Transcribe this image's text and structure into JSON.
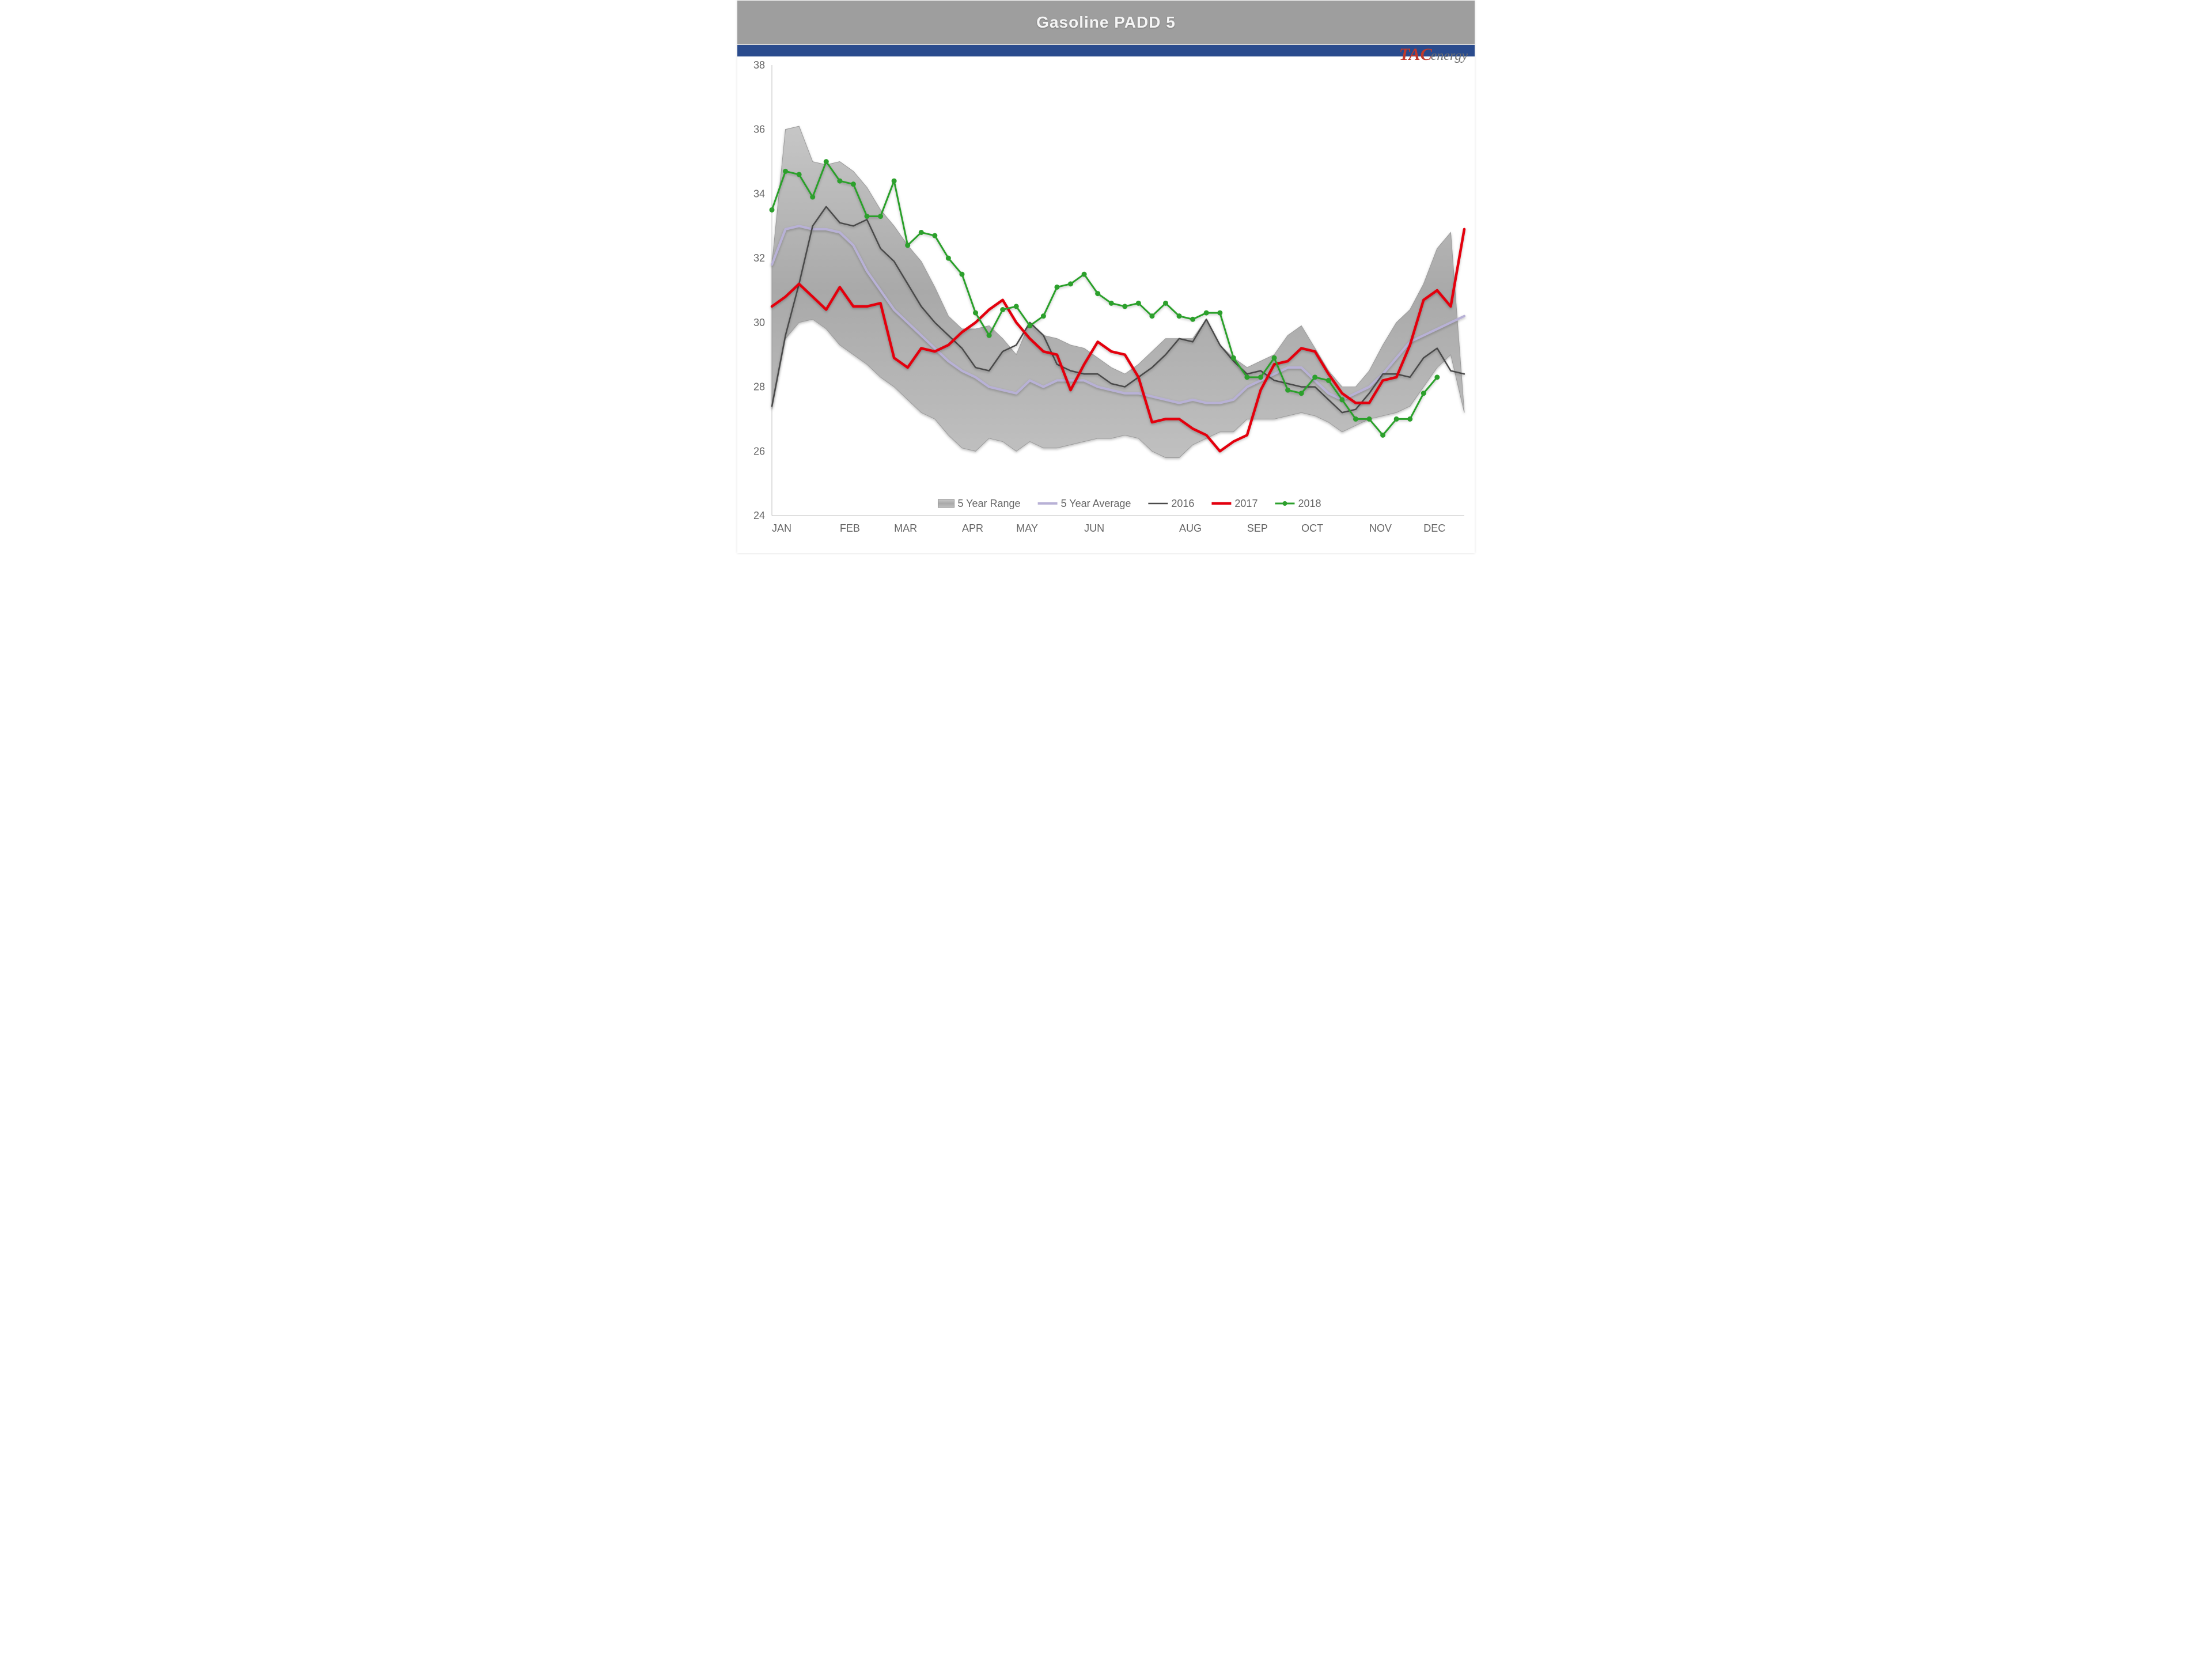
{
  "title": "Gasoline PADD 5",
  "logo": {
    "left": "TAC",
    "right": "energy"
  },
  "chart": {
    "type": "line-with-band",
    "background_color": "#ffffff",
    "plot_border_color": "#bfbfbf",
    "title_bar_color": "#9e9e9e",
    "title_text_color": "#f5f5f5",
    "blue_strip_color": "#2a4b8d",
    "axis_font_size": 18,
    "axis_font_color": "#666666",
    "y": {
      "min": 24,
      "max": 38,
      "tick_step": 2,
      "ticks": [
        24,
        26,
        28,
        30,
        32,
        34,
        36,
        38
      ]
    },
    "x": {
      "labels": [
        "JAN",
        "FEB",
        "MAR",
        "APR",
        "MAY",
        "JUN",
        "AUG",
        "SEP",
        "OCT",
        "NOV",
        "DEC"
      ],
      "label_positions_weeks": [
        0,
        5,
        9,
        14,
        18,
        23,
        30,
        35,
        39,
        44,
        48
      ],
      "weeks": 52
    },
    "range_band": {
      "label": "5 Year Range",
      "fill": "#b9b9b9",
      "stroke": "#8f8f8f",
      "upper": [
        31.8,
        36.0,
        36.1,
        35.0,
        34.9,
        35.0,
        34.7,
        34.2,
        33.5,
        33.0,
        32.4,
        31.9,
        31.1,
        30.2,
        29.8,
        29.8,
        29.9,
        29.5,
        29.0,
        30.0,
        29.6,
        29.5,
        29.3,
        29.2,
        28.9,
        28.6,
        28.4,
        28.7,
        29.1,
        29.5,
        29.5,
        29.5,
        30.1,
        29.3,
        28.9,
        28.6,
        28.8,
        29.0,
        29.6,
        29.9,
        29.2,
        28.5,
        28.0,
        28.0,
        28.5,
        29.3,
        30.0,
        30.4,
        31.2,
        32.3,
        32.8,
        27.2
      ],
      "lower": [
        27.3,
        29.5,
        30.0,
        30.1,
        29.8,
        29.3,
        29.0,
        28.7,
        28.3,
        28.0,
        27.6,
        27.2,
        27.0,
        26.5,
        26.1,
        26.0,
        26.4,
        26.3,
        26.0,
        26.3,
        26.1,
        26.1,
        26.2,
        26.3,
        26.4,
        26.4,
        26.5,
        26.4,
        26.0,
        25.8,
        25.8,
        26.2,
        26.4,
        26.6,
        26.6,
        27.0,
        27.0,
        27.0,
        27.1,
        27.2,
        27.1,
        26.9,
        26.6,
        26.8,
        27.0,
        27.1,
        27.2,
        27.4,
        28.0,
        28.6,
        29.0,
        27.2
      ]
    },
    "series": [
      {
        "name": "5 Year Average",
        "color": "#b8b1d6",
        "width": 4,
        "marker": false,
        "values": [
          31.8,
          32.9,
          33.0,
          32.9,
          32.9,
          32.8,
          32.4,
          31.6,
          31.0,
          30.4,
          30.0,
          29.6,
          29.2,
          28.8,
          28.5,
          28.3,
          28.0,
          27.9,
          27.8,
          28.2,
          28.0,
          28.2,
          28.2,
          28.2,
          28.0,
          27.9,
          27.8,
          27.8,
          27.7,
          27.6,
          27.5,
          27.6,
          27.5,
          27.5,
          27.6,
          28.0,
          28.2,
          28.4,
          28.6,
          28.6,
          28.2,
          27.8,
          27.6,
          27.8,
          28.0,
          28.4,
          28.9,
          29.4,
          29.6,
          29.8,
          30.0,
          30.2
        ]
      },
      {
        "name": "2016",
        "color": "#4a4a4a",
        "width": 2.5,
        "marker": false,
        "values": [
          27.4,
          29.6,
          31.2,
          33.0,
          33.6,
          33.1,
          33.0,
          33.2,
          32.3,
          31.9,
          31.2,
          30.5,
          30.0,
          29.6,
          29.2,
          28.6,
          28.5,
          29.1,
          29.3,
          30.0,
          29.6,
          28.7,
          28.5,
          28.4,
          28.4,
          28.1,
          28.0,
          28.3,
          28.6,
          29.0,
          29.5,
          29.4,
          30.1,
          29.3,
          28.8,
          28.4,
          28.5,
          28.2,
          28.1,
          28.0,
          28.0,
          27.6,
          27.2,
          27.3,
          27.8,
          28.4,
          28.4,
          28.3,
          28.9,
          29.2,
          28.5,
          28.4
        ]
      },
      {
        "name": "2017",
        "color": "#e3000f",
        "width": 4.5,
        "marker": false,
        "values": [
          30.5,
          30.8,
          31.2,
          30.8,
          30.4,
          31.1,
          30.5,
          30.5,
          30.6,
          28.9,
          28.6,
          29.2,
          29.1,
          29.3,
          29.7,
          30.0,
          30.4,
          30.7,
          30.0,
          29.5,
          29.1,
          29.0,
          27.9,
          28.7,
          29.4,
          29.1,
          29.0,
          28.3,
          26.9,
          27.0,
          27.0,
          26.7,
          26.5,
          26.0,
          26.3,
          26.5,
          27.9,
          28.7,
          28.8,
          29.2,
          29.1,
          28.4,
          27.8,
          27.5,
          27.5,
          28.2,
          28.3,
          29.3,
          30.7,
          31.0,
          30.5,
          32.9
        ]
      },
      {
        "name": "2018",
        "color": "#2ca02c",
        "width": 3,
        "marker": true,
        "marker_r": 4,
        "values": [
          33.5,
          34.7,
          34.6,
          33.9,
          35.0,
          34.4,
          34.3,
          33.3,
          33.3,
          34.4,
          32.4,
          32.8,
          32.7,
          32.0,
          31.5,
          30.3,
          29.6,
          30.4,
          30.5,
          29.9,
          30.2,
          31.1,
          31.2,
          31.5,
          30.9,
          30.6,
          30.5,
          30.6,
          30.2,
          30.6,
          30.2,
          30.1,
          30.3,
          30.3,
          28.9,
          28.3,
          28.3,
          28.9,
          27.9,
          27.8,
          28.3,
          28.2,
          27.6,
          27.0,
          27.0,
          26.5,
          27.0,
          27.0,
          27.8,
          28.3
        ]
      }
    ],
    "legend": {
      "font_size": 18,
      "items": [
        {
          "type": "band",
          "label": "5 Year Range"
        },
        {
          "type": "line",
          "color": "#b8b1d6",
          "label": "5 Year Average",
          "width": 4
        },
        {
          "type": "line",
          "color": "#4a4a4a",
          "label": "2016",
          "width": 2.5
        },
        {
          "type": "line",
          "color": "#e3000f",
          "label": "2017",
          "width": 4.5
        },
        {
          "type": "line-marker",
          "color": "#2ca02c",
          "label": "2018",
          "width": 3
        }
      ]
    }
  }
}
